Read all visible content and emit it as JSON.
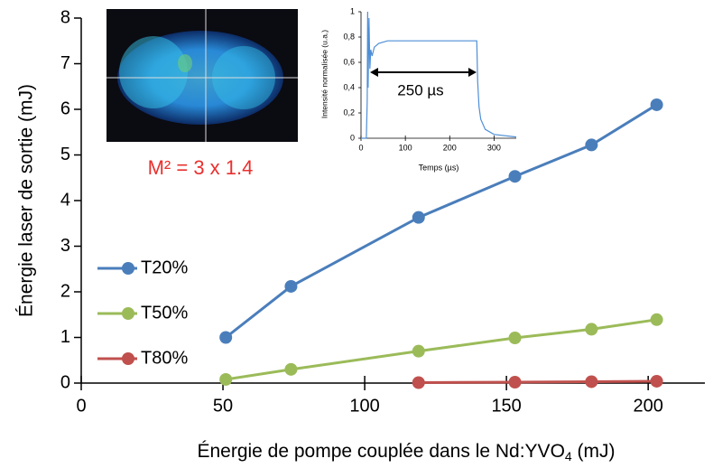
{
  "chart_data": [
    {
      "type": "line",
      "y_label": "Énergie laser de sortie (mJ)",
      "x_label": {
        "text": "Énergie de pompe couplée dans le Nd:YVO",
        "subscript": "4",
        "suffix": " (mJ)"
      },
      "annotation": "M² = 3 x 1.4",
      "xlim": [
        0,
        220
      ],
      "xticks": [
        0,
        50,
        100,
        150,
        200
      ],
      "ylim": [
        0,
        8
      ],
      "yticks": [
        0,
        1,
        2,
        3,
        4,
        5,
        6,
        7,
        8
      ],
      "legend": "left",
      "series": [
        {
          "name": "T20%",
          "color": "#4a7ebb",
          "x": [
            51,
            74,
            119,
            153,
            180,
            203
          ],
          "values": [
            1.0,
            2.12,
            3.63,
            4.53,
            5.22,
            6.1
          ]
        },
        {
          "name": "T50%",
          "color": "#9bbb59",
          "x": [
            51,
            74,
            119,
            153,
            180,
            203
          ],
          "values": [
            0.08,
            0.3,
            0.7,
            0.99,
            1.18,
            1.39
          ]
        },
        {
          "name": "T80%",
          "color": "#c0504d",
          "x": [
            119,
            153,
            180,
            203
          ],
          "values": [
            0.01,
            0.02,
            0.03,
            0.04
          ]
        }
      ]
    },
    {
      "type": "line",
      "y_label": "Intensité normalisée (u.a.)",
      "x_label": "Temps (µs)",
      "annotation": "250 µs",
      "xlim": [
        0,
        350
      ],
      "xticks": [
        0,
        100,
        200,
        300
      ],
      "ylim": [
        0,
        1
      ],
      "yticks": [
        0,
        {
          "value": 0.2,
          "label": "0,2"
        },
        {
          "value": 0.4,
          "label": "0,4"
        },
        {
          "value": 0.6,
          "label": "0,6"
        },
        {
          "value": 0.8,
          "label": "0,8"
        },
        1
      ],
      "series": [
        {
          "color": "#4f8fd6",
          "x": [
            0,
            12,
            14,
            15,
            16,
            18,
            20,
            22,
            25,
            30,
            40,
            60,
            100,
            150,
            200,
            250,
            261,
            263,
            266,
            270,
            280,
            300,
            350
          ],
          "values": [
            0,
            0,
            0.3,
            1.0,
            0.4,
            0.95,
            0.55,
            0.7,
            0.65,
            0.72,
            0.75,
            0.77,
            0.77,
            0.77,
            0.77,
            0.77,
            0.77,
            0.45,
            0.25,
            0.15,
            0.07,
            0.03,
            0.01
          ]
        }
      ]
    }
  ]
}
